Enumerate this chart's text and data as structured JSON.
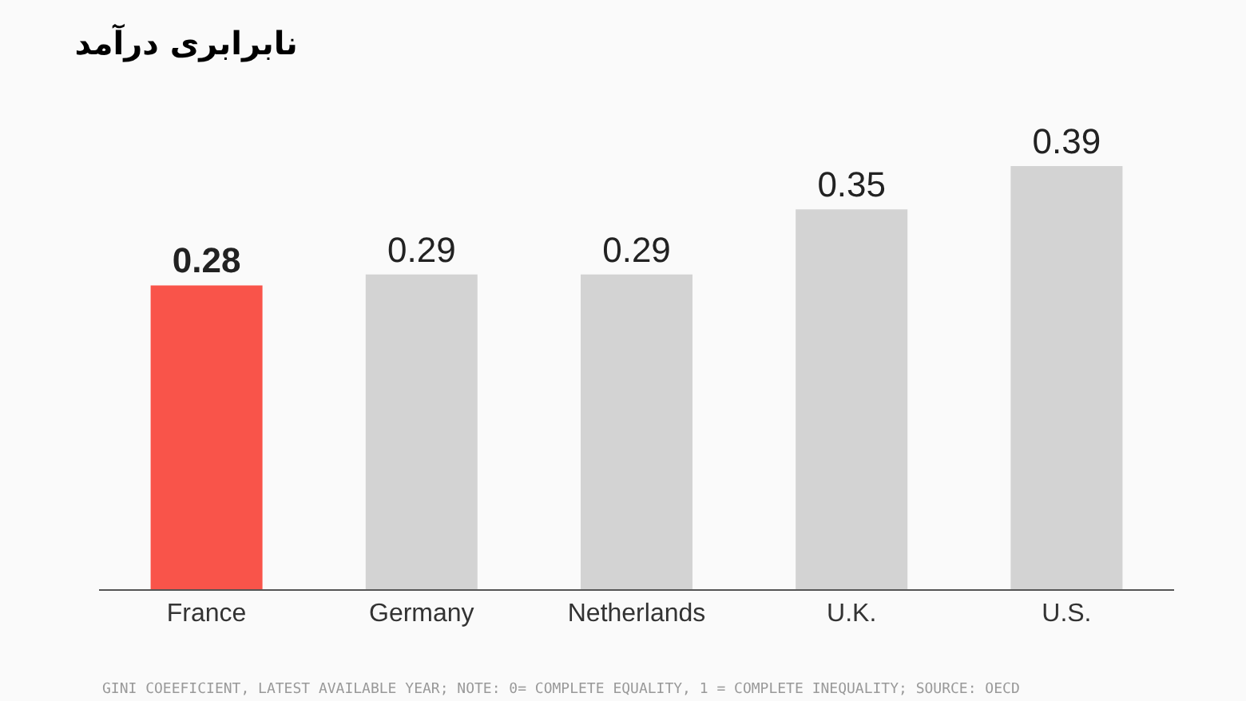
{
  "chart_data": {
    "type": "bar",
    "title": "نابرابری درآمد",
    "categories": [
      "France",
      "Germany",
      "Netherlands",
      "U.K.",
      "U.S."
    ],
    "values": [
      0.28,
      0.29,
      0.29,
      0.35,
      0.39
    ],
    "colors": [
      "#f9544a",
      "#d3d3d3",
      "#d3d3d3",
      "#d3d3d3",
      "#d3d3d3"
    ],
    "data_labels": true,
    "legend": false,
    "tick_labels": "x",
    "annotations": [
      "GINI COEEFICIENT, LATEST AVAILABLE YEAR; NOTE: 0= COMPLETE EQUALITY, 1 = COMPLETE INEQUALITY; SOURCE: OECD"
    ]
  }
}
